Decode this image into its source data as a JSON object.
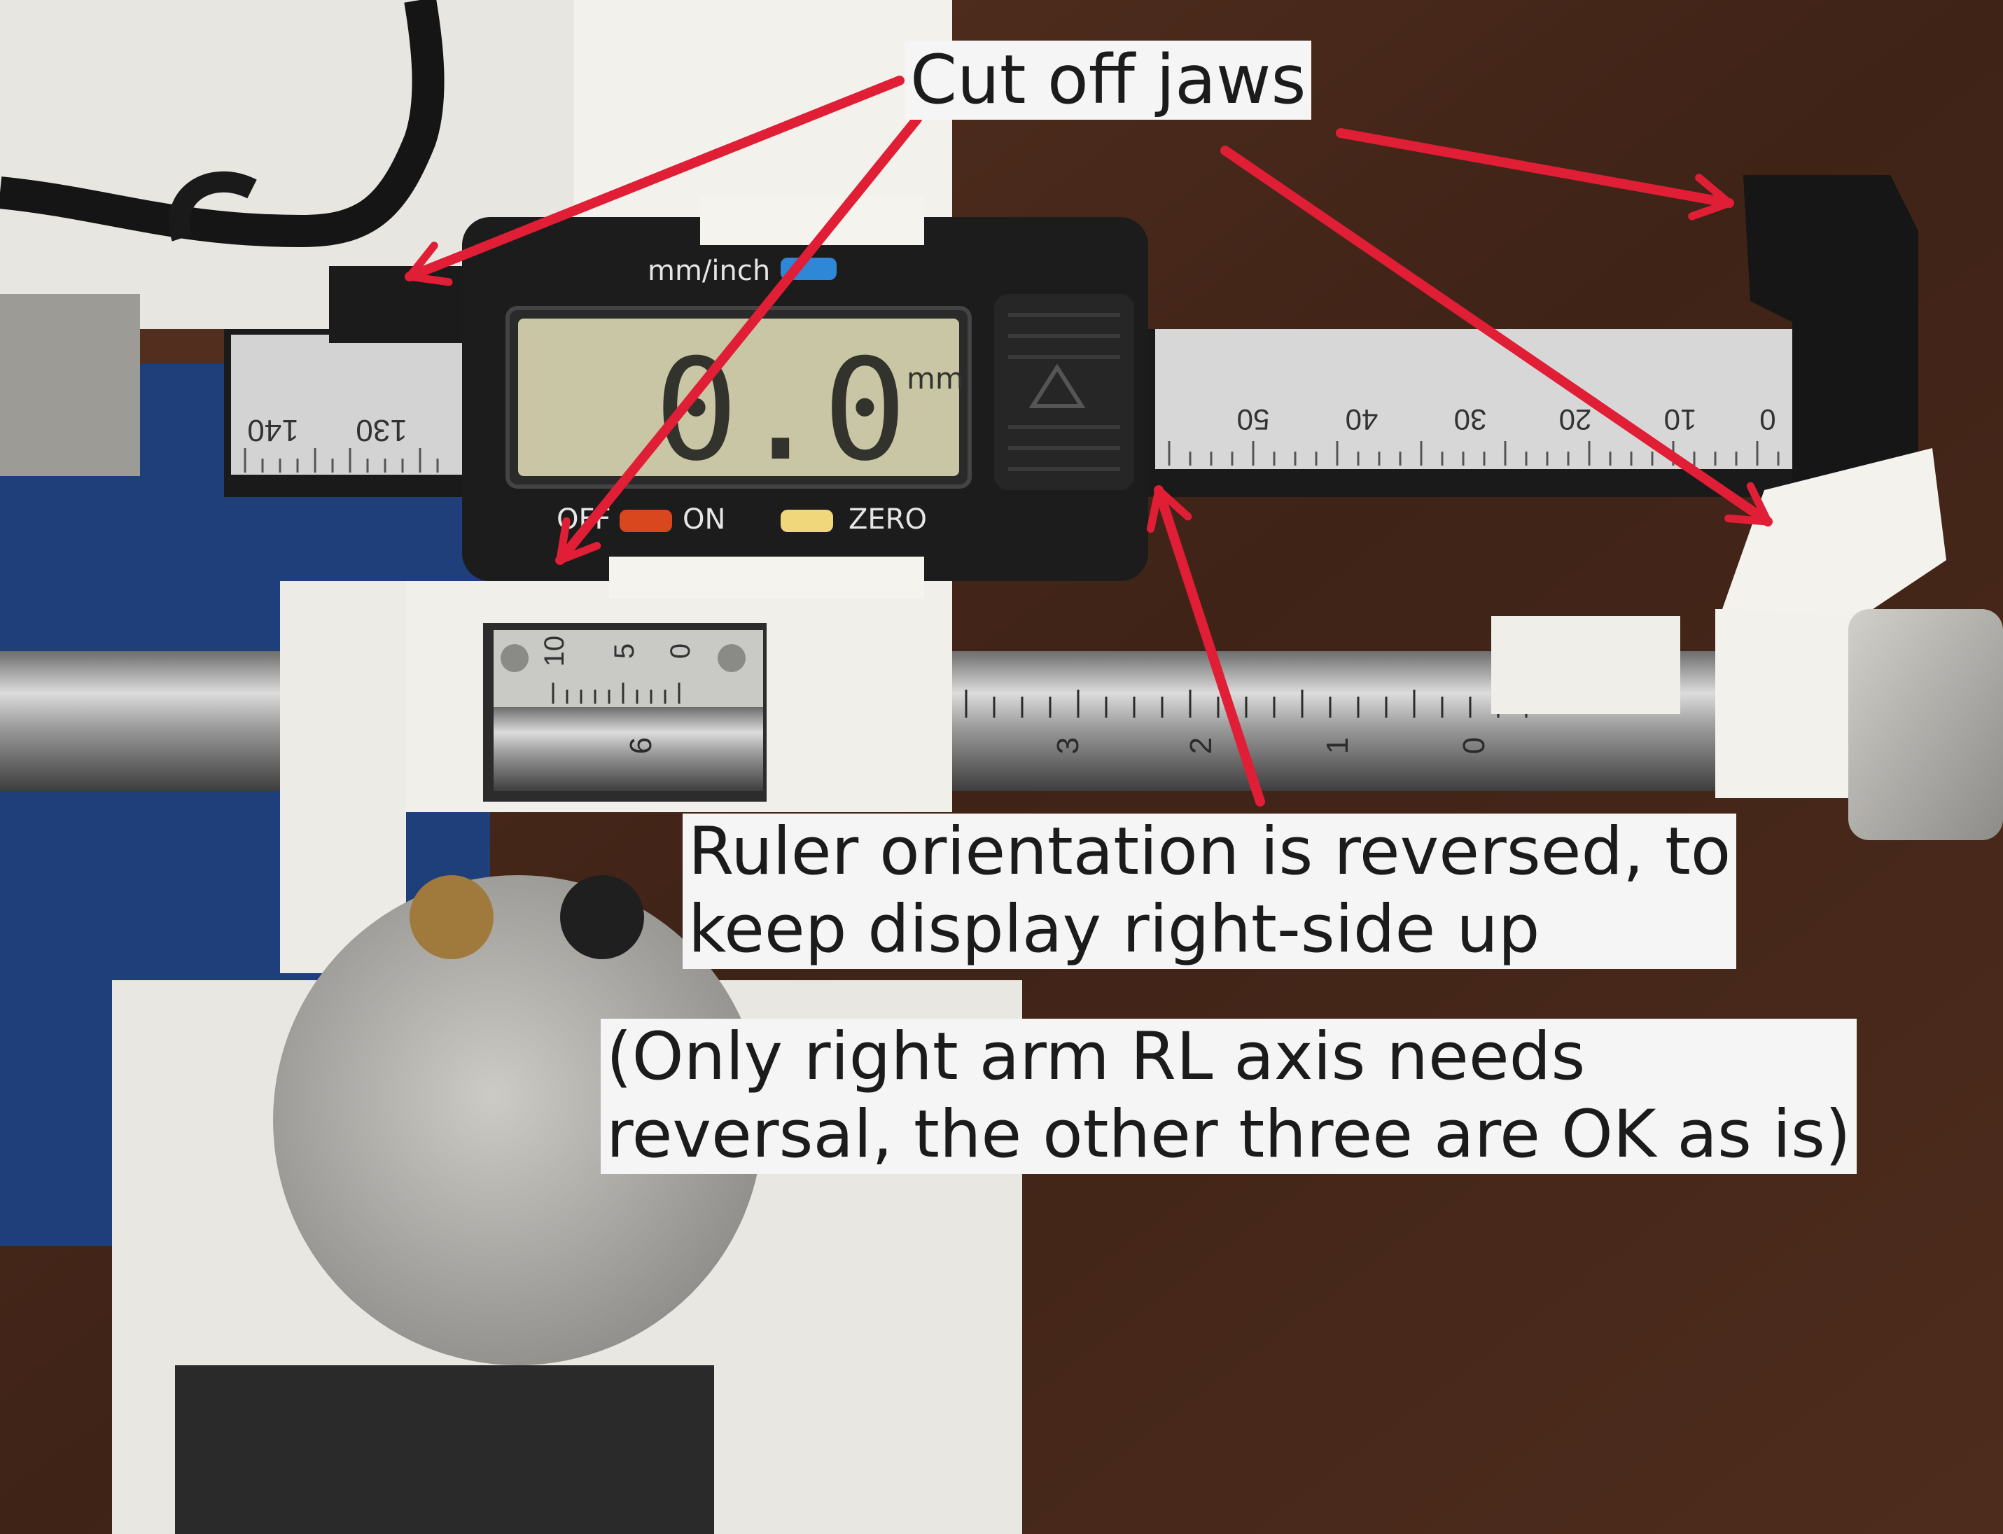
{
  "annotations": {
    "jaws_label": "Cut off jaws",
    "ruler_label_lines": [
      "Ruler orientation is reversed, to",
      "keep display right-side up"
    ],
    "note_lines": [
      "(Only right arm RL axis needs",
      "reversal, the other three are OK as is)"
    ]
  },
  "caliper": {
    "unit_toggle_label": "mm/inch",
    "reading": "0.0",
    "unit": "mm",
    "off_label": "OFF",
    "on_label": "ON",
    "zero_label": "ZERO",
    "left_scale_labels": [
      "140",
      "130"
    ],
    "right_scale_labels": [
      "50",
      "40",
      "30",
      "20",
      "10",
      "0"
    ]
  },
  "rod": {
    "vernier_labels": [
      "10",
      "5",
      "0"
    ],
    "sleeve_labels": [
      "6",
      "3",
      "2",
      "1",
      "0"
    ]
  },
  "colors": {
    "arrow": "#e01e35",
    "label_bg": "#f5f5f5",
    "wood": "#4a2a1c",
    "blue_panel": "#1f3f7a",
    "caliper_body": "#1c1c1c",
    "lcd": "#c8c6a4",
    "on_button": "#d9471f",
    "zero_button": "#f0d77c",
    "mode_button": "#2f87d8"
  }
}
